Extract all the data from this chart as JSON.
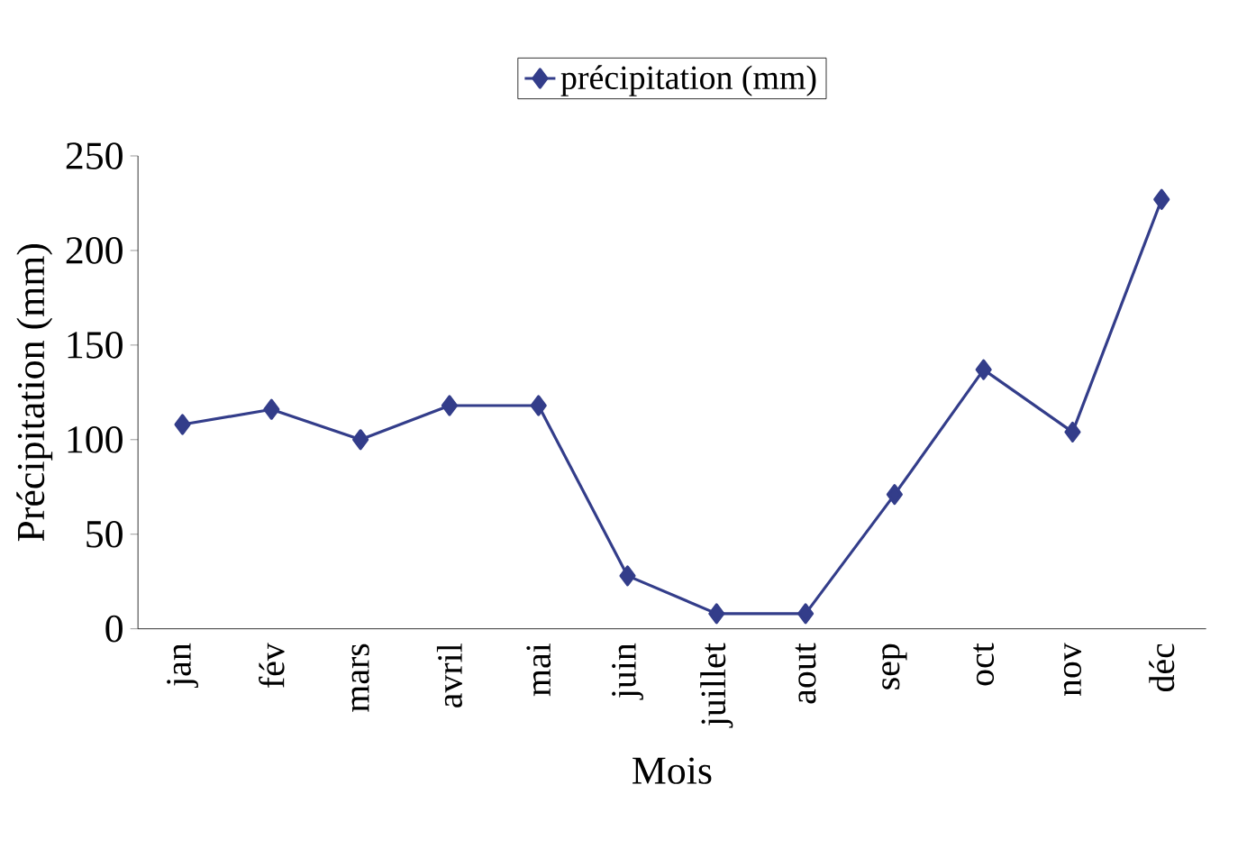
{
  "chart_data": {
    "type": "line",
    "xlabel": "Mois",
    "ylabel": "Précipitation (mm)",
    "categories": [
      "jan",
      "fév",
      "mars",
      "avril",
      "mai",
      "juin",
      "juillet",
      "aout",
      "sep",
      "oct",
      "nov",
      "déc"
    ],
    "series": [
      {
        "name": "précipitation (mm)",
        "color": "#333d8a",
        "values": [
          108,
          116,
          100,
          118,
          118,
          28,
          8,
          8,
          71,
          137,
          104,
          227
        ]
      }
    ],
    "ylim": [
      0,
      250
    ],
    "yticks": [
      0,
      50,
      100,
      150,
      200,
      250
    ],
    "grid": false,
    "legend": "top",
    "marker": "diamond",
    "line_style": "solid"
  }
}
